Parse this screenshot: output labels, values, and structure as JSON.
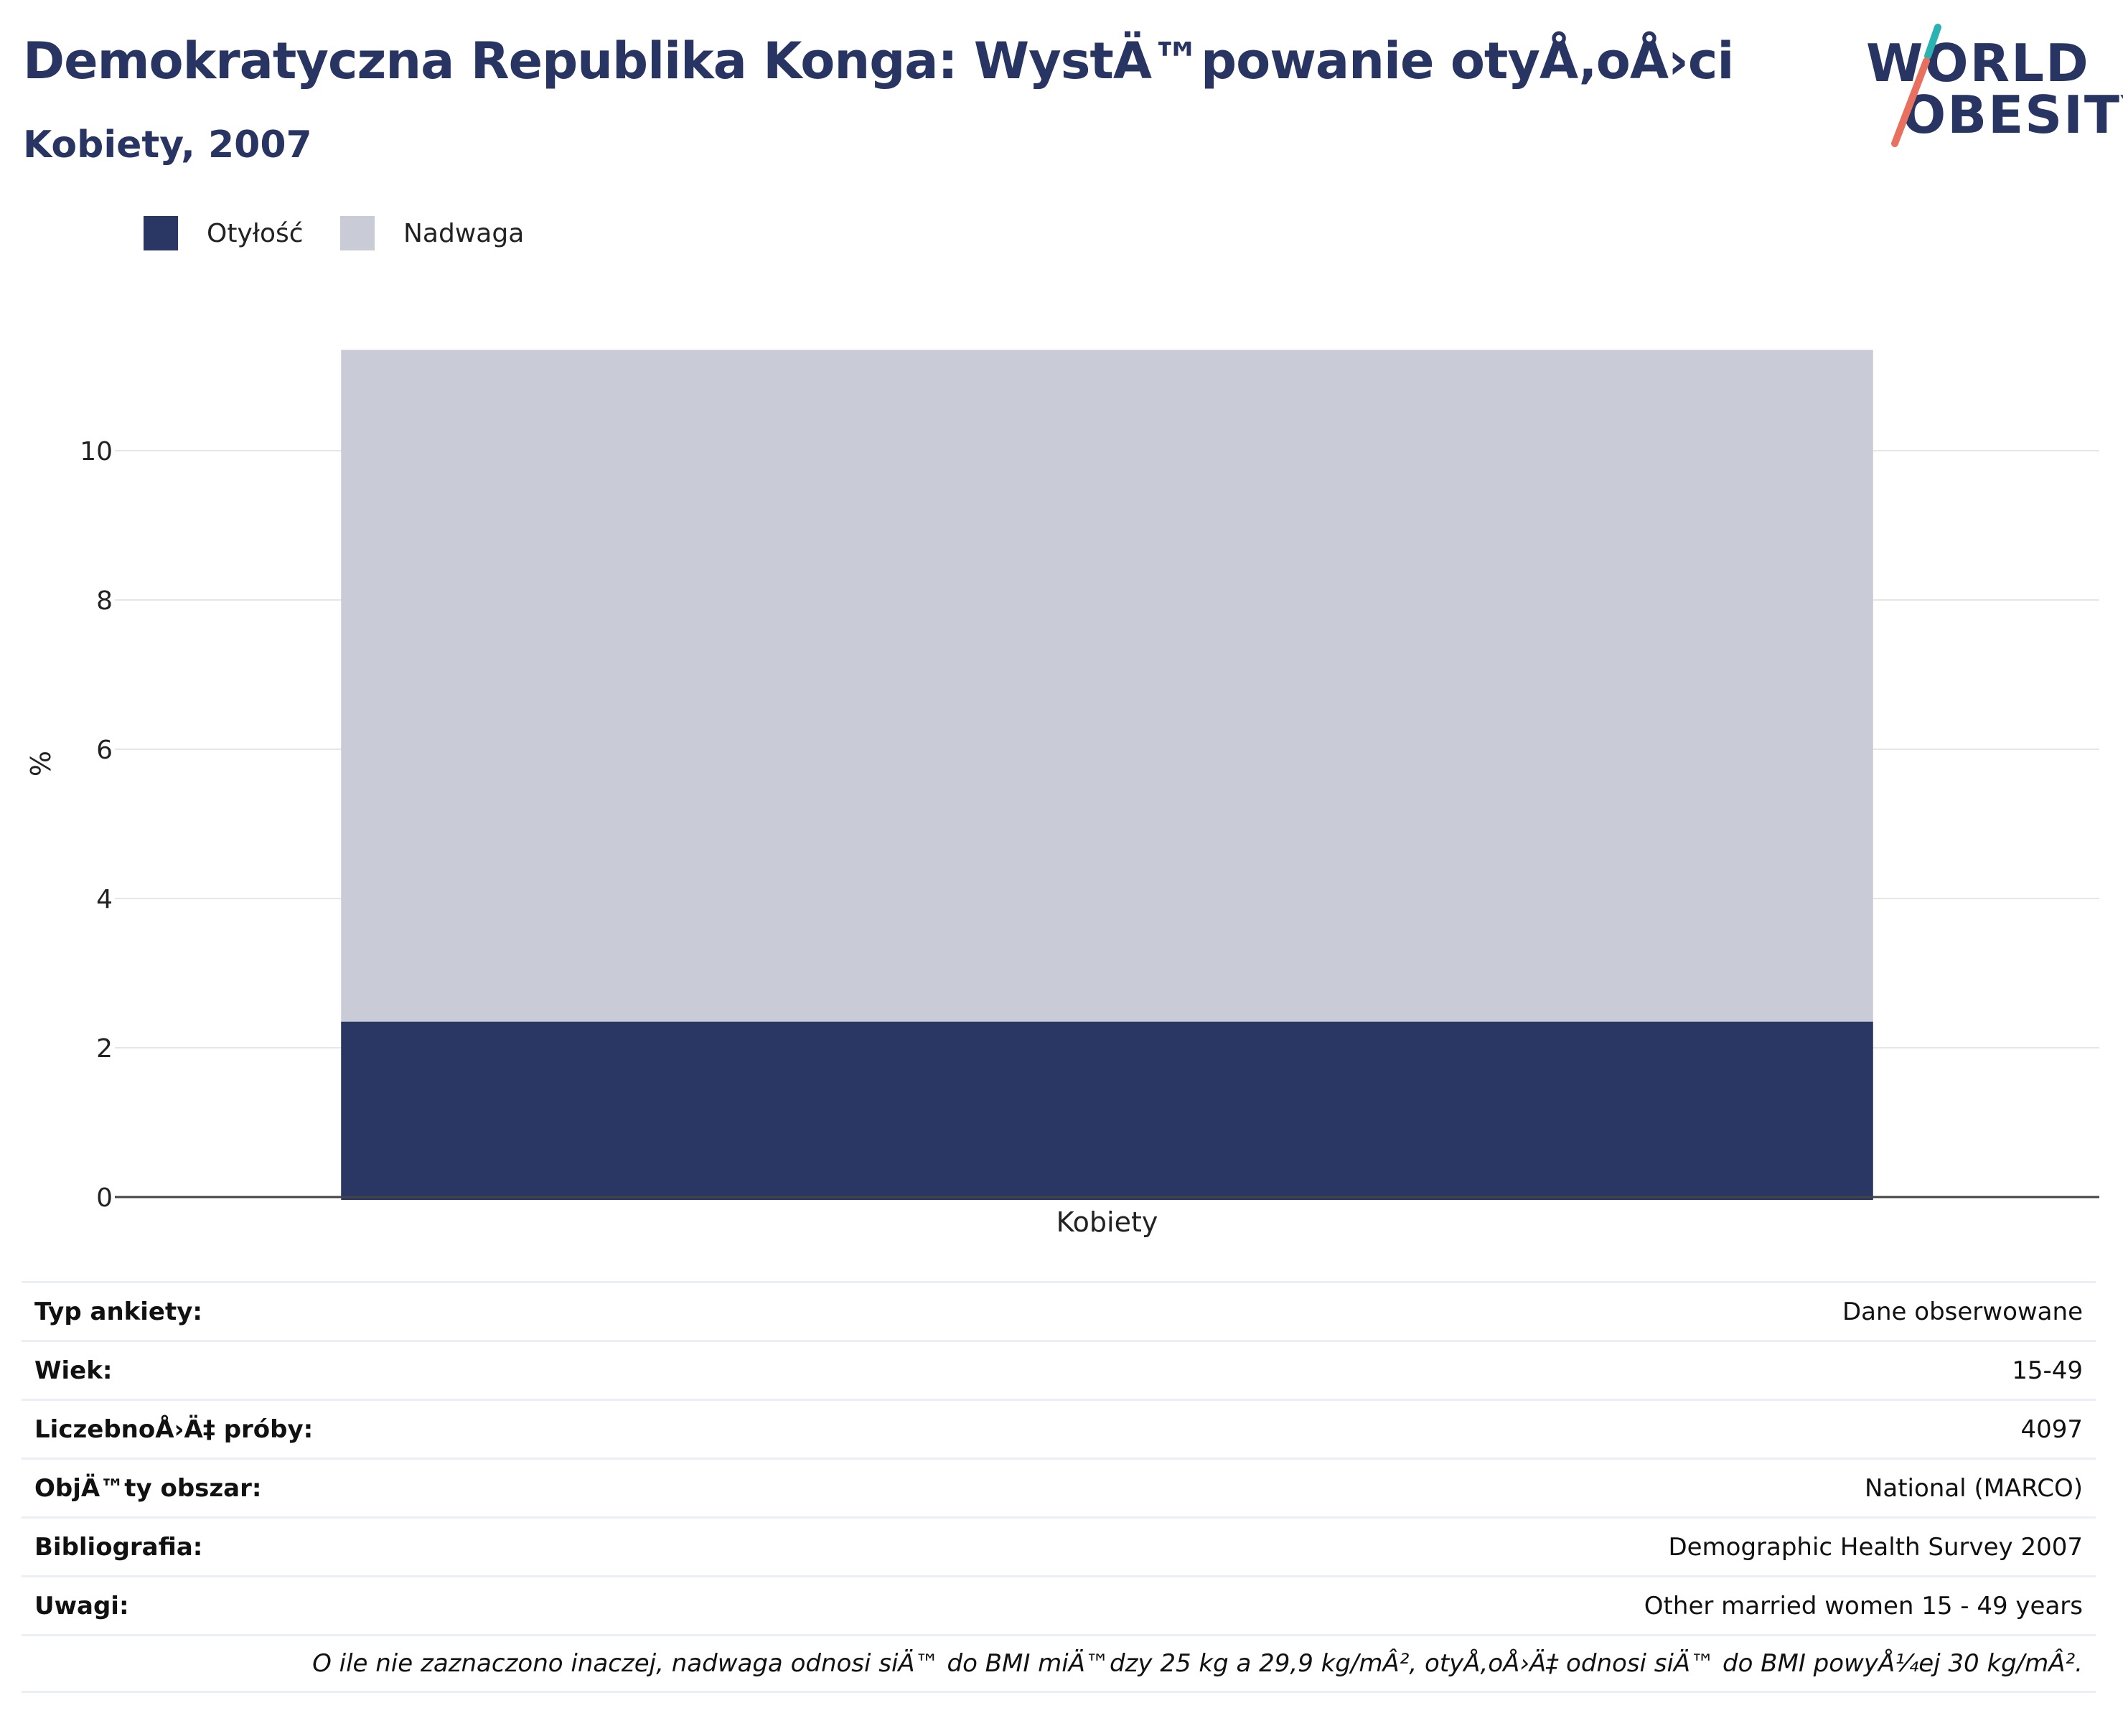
{
  "header": {
    "title": "Demokratyczna Republika Konga: WystÄ™powanie otyÅ‚oÅ›ci",
    "subtitle": "Kobiety, 2007"
  },
  "logo": {
    "line1": "WORLD",
    "line2": "OBESITY",
    "colors": {
      "text": "#283462",
      "slash_top": "#2bb3b1",
      "slash_bottom": "#e8705f"
    }
  },
  "legend": {
    "items": [
      {
        "label": "Otyłość",
        "color": "#2a3663"
      },
      {
        "label": "Nadwaga",
        "color": "#c9ccd7"
      }
    ]
  },
  "chart_data": {
    "type": "bar",
    "stacked": true,
    "categories": [
      "Kobiety"
    ],
    "series": [
      {
        "name": "Otyłość",
        "values": [
          2.35
        ],
        "color": "#2a3663"
      },
      {
        "name": "Nadwaga",
        "values": [
          9.0
        ],
        "color": "#c9ccd7"
      }
    ],
    "ylabel": "%",
    "xlabel": "",
    "ylim": [
      0,
      12
    ],
    "yticks": [
      0,
      2,
      4,
      6,
      8,
      10
    ],
    "grid": true,
    "legend_position": "top-left"
  },
  "info": {
    "rows": [
      {
        "label": "Typ ankiety:",
        "value": "Dane obserwowane"
      },
      {
        "label": "Wiek:",
        "value": "15-49"
      },
      {
        "label": "LiczebnoÅ›Ä‡ próby:",
        "value": "4097"
      },
      {
        "label": "ObjÄ™ty obszar:",
        "value": "National (MARCO)"
      },
      {
        "label": "Bibliografia:",
        "value": "Demographic Health Survey 2007"
      },
      {
        "label": "Uwagi:",
        "value": "Other married women 15 - 49 years"
      }
    ],
    "note": "O ile nie zaznaczono inaczej, nadwaga odnosi siÄ™ do BMI miÄ™dzy 25 kg a 29,9 kg/mÂ², otyÅ‚oÅ›Ä‡ odnosi siÄ™ do BMI powyÅ¼ej 30 kg/mÂ²."
  }
}
